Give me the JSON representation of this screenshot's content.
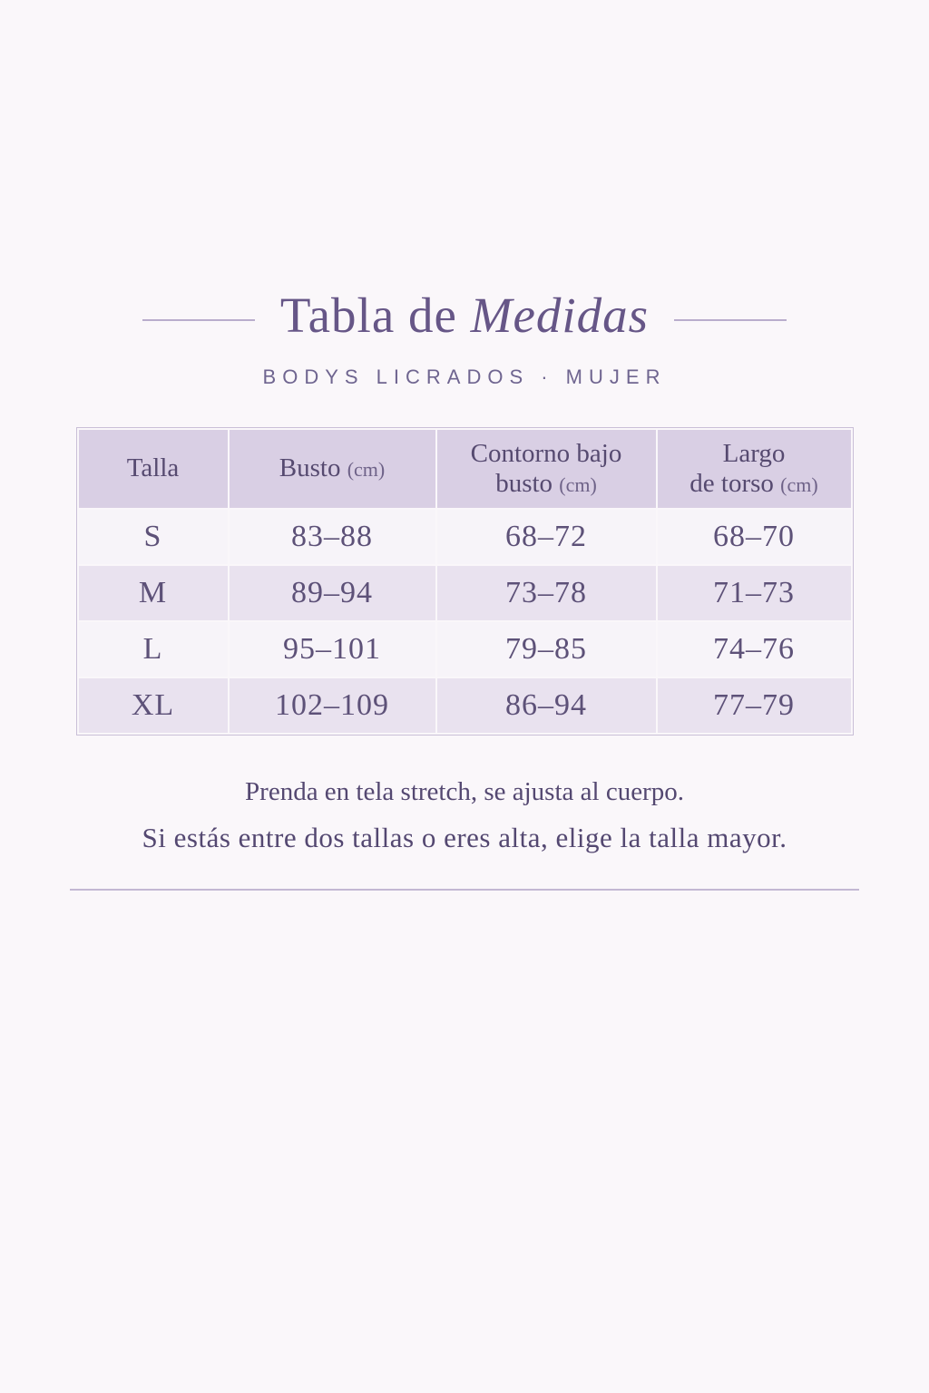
{
  "colors": {
    "page_background": "#faf7fa",
    "title_text": "#665687",
    "subtitle_text": "#6f6590",
    "table_header_background": "#d9cfe4",
    "table_header_text": "#564a70",
    "row_light_background": "#f7f4f9",
    "row_shaded_background": "#e9e2ef",
    "cell_text": "#5d5178",
    "divider_line": "#c3b8d3"
  },
  "header": {
    "title_regular": "Tabla de",
    "title_italic": "Medidas",
    "subtitle": "BODYS LICRADOS · MUJER"
  },
  "table": {
    "columns": [
      {
        "line1": "Talla",
        "line2": "",
        "unit": ""
      },
      {
        "line1": "Busto",
        "line2": "",
        "unit": "(cm)"
      },
      {
        "line1": "Contorno bajo",
        "line2": "busto",
        "unit": "(cm)"
      },
      {
        "line1": "Largo",
        "line2": "de torso",
        "unit": "(cm)"
      }
    ],
    "rows": [
      {
        "talla": "S",
        "busto": "83–88",
        "contorno": "68–72",
        "largo": "68–70"
      },
      {
        "talla": "M",
        "busto": "89–94",
        "contorno": "73–78",
        "largo": "71–73"
      },
      {
        "talla": "L",
        "busto": "95–101",
        "contorno": "79–85",
        "largo": "74–76"
      },
      {
        "talla": "XL",
        "busto": "102–109",
        "contorno": "86–94",
        "largo": "77–79"
      }
    ]
  },
  "notes": {
    "line1": "Prenda en tela stretch, se ajusta al cuerpo.",
    "line2": "Si estás entre dos tallas o eres alta, elige la talla mayor."
  },
  "chart_data": {
    "type": "table",
    "title": "Tabla de Medidas",
    "subtitle": "BODYS LICRADOS · MUJER",
    "columns": [
      "Talla",
      "Busto (cm)",
      "Contorno bajo busto (cm)",
      "Largo de torso (cm)"
    ],
    "rows": [
      [
        "S",
        "83–88",
        "68–72",
        "68–70"
      ],
      [
        "M",
        "89–94",
        "73–78",
        "71–73"
      ],
      [
        "L",
        "95–101",
        "79–85",
        "74–76"
      ],
      [
        "XL",
        "102–109",
        "86–94",
        "77–79"
      ]
    ],
    "notes": [
      "Prenda en tela stretch, se ajusta al cuerpo.",
      "Si estás entre dos tallas o eres alta, elige la talla mayor."
    ]
  }
}
